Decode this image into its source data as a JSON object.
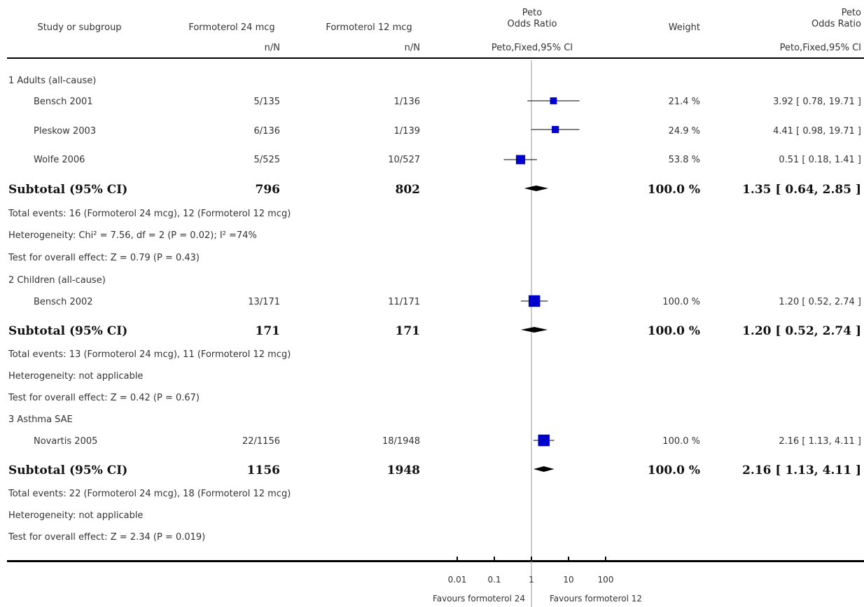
{
  "header": {
    "study_col": "Study or subgroup",
    "treat_col": "Formoterol 24 mcg",
    "control_col": "Formoterol 12 mcg",
    "or_col_line1": "Peto",
    "or_col_line2": "Odds Ratio",
    "weight_col": "Weight",
    "or2_col_line1": "Peto",
    "or2_col_line2": "Odds Ratio",
    "treat_sub": "n/N",
    "control_sub": "n/N",
    "method_sub": "Peto,Fixed,95% CI",
    "method2_sub": "Peto,Fixed,95% CI"
  },
  "groups": [
    {
      "title": "1 Adults (all-cause)",
      "studies": [
        {
          "name": "Bensch 2001",
          "treat": "5/135",
          "control": "1/136",
          "weight": "21.4 %",
          "ci_text": "3.92 [ 0.78, 19.71 ]"
        },
        {
          "name": "Pleskow 2003",
          "treat": "6/136",
          "control": "1/139",
          "weight": "24.9 %",
          "ci_text": "4.41 [ 0.98, 19.71 ]"
        },
        {
          "name": "Wolfe 2006",
          "treat": "5/525",
          "control": "10/527",
          "weight": "53.8 %",
          "ci_text": "0.51 [ 0.18, 1.41 ]"
        }
      ],
      "subtotal": {
        "label": "Subtotal (95% CI)",
        "treat": "796",
        "control": "802",
        "weight": "100.0 %",
        "ci_text": "1.35 [ 0.64, 2.85 ]"
      },
      "notes": [
        "Total events: 16 (Formoterol 24 mcg), 12 (Formoterol 12 mcg)",
        "Heterogeneity: Chi² = 7.56, df = 2 (P = 0.02); I² =74%",
        "Test for overall effect: Z = 0.79 (P = 0.43)"
      ]
    },
    {
      "title": "2 Children (all-cause)",
      "studies": [
        {
          "name": "Bensch 2002",
          "treat": "13/171",
          "control": "11/171",
          "weight": "100.0 %",
          "ci_text": "1.20 [ 0.52, 2.74 ]"
        }
      ],
      "subtotal": {
        "label": "Subtotal (95% CI)",
        "treat": "171",
        "control": "171",
        "weight": "100.0 %",
        "ci_text": "1.20 [ 0.52, 2.74 ]"
      },
      "notes": [
        "Total events: 13 (Formoterol 24 mcg), 11 (Formoterol 12 mcg)",
        "Heterogeneity: not applicable",
        "Test for overall effect: Z = 0.42 (P = 0.67)"
      ]
    },
    {
      "title": "3 Asthma SAE",
      "studies": [
        {
          "name": "Novartis 2005",
          "treat": "22/1156",
          "control": "18/1948",
          "weight": "100.0 %",
          "ci_text": "2.16 [ 1.13, 4.11 ]"
        }
      ],
      "subtotal": {
        "label": "Subtotal (95% CI)",
        "treat": "1156",
        "control": "1948",
        "weight": "100.0 %",
        "ci_text": "2.16 [ 1.13, 4.11 ]"
      },
      "notes": [
        "Total events: 22 (Formoterol 24 mcg), 18 (Formoterol 12 mcg)",
        "Heterogeneity: not applicable",
        "Test for overall effect: Z = 2.34 (P = 0.019)"
      ]
    }
  ],
  "axis": {
    "ticks": [
      "0.01",
      "0.1",
      "1",
      "10",
      "100"
    ],
    "favours_left": "Favours formoterol 24",
    "favours_right": "Favours formoterol 12"
  },
  "colors": {
    "marker": "#0000cc",
    "line": "#000000",
    "ref": "#999999"
  },
  "chart_data": {
    "type": "forest",
    "x_scale": "log",
    "xlim": [
      0.01,
      100
    ],
    "reference_line": 1,
    "xticks": [
      0.01,
      0.1,
      1,
      10,
      100
    ],
    "rows": [
      {
        "label": "Bensch 2001",
        "kind": "study",
        "or": 3.92,
        "lo": 0.78,
        "hi": 19.71,
        "weight": 21.4
      },
      {
        "label": "Pleskow 2003",
        "kind": "study",
        "or": 4.41,
        "lo": 0.98,
        "hi": 19.71,
        "weight": 24.9
      },
      {
        "label": "Wolfe 2006",
        "kind": "study",
        "or": 0.51,
        "lo": 0.18,
        "hi": 1.41,
        "weight": 53.8
      },
      {
        "label": "Subtotal (95% CI)",
        "kind": "subtotal",
        "or": 1.35,
        "lo": 0.64,
        "hi": 2.85,
        "weight": 100.0
      },
      {
        "label": "Bensch 2002",
        "kind": "study",
        "or": 1.2,
        "lo": 0.52,
        "hi": 2.74,
        "weight": 100.0
      },
      {
        "label": "Subtotal (95% CI)",
        "kind": "subtotal",
        "or": 1.2,
        "lo": 0.52,
        "hi": 2.74,
        "weight": 100.0
      },
      {
        "label": "Novartis 2005",
        "kind": "study",
        "or": 2.16,
        "lo": 1.13,
        "hi": 4.11,
        "weight": 100.0
      },
      {
        "label": "Subtotal (95% CI)",
        "kind": "subtotal",
        "or": 2.16,
        "lo": 1.13,
        "hi": 4.11,
        "weight": 100.0
      }
    ]
  }
}
